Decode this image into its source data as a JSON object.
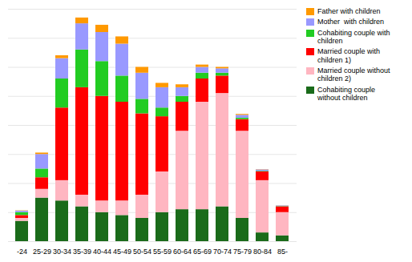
{
  "chart_data": {
    "type": "bar",
    "stacked": true,
    "categories": [
      "-24",
      "25-29",
      "30-34",
      "35-39",
      "40-44",
      "45-49",
      "50-54",
      "55-59",
      "60-64",
      "65-69",
      "70-74",
      "75-79",
      "80-84",
      "85-"
    ],
    "series": [
      {
        "name": "Cohabiting couple\nwithout children",
        "color": "#1a6b1a",
        "values": [
          7,
          15,
          14,
          12,
          10,
          9,
          8,
          10,
          11,
          11,
          12,
          8,
          3,
          2
        ]
      },
      {
        "name": "Married couple without\nchildren 2)",
        "color": "#ffb6c1",
        "values": [
          1,
          3,
          7,
          4,
          4,
          5,
          8,
          14,
          27,
          37,
          39,
          30,
          18,
          8
        ]
      },
      {
        "name": "Married couple with\nchildren 1)",
        "color": "#ff0000",
        "values": [
          1,
          4,
          25,
          37,
          36,
          34,
          28,
          19,
          10,
          8,
          6,
          4,
          3,
          2
        ]
      },
      {
        "name": "Cohabiting couple with\nchildren",
        "color": "#22cc22",
        "values": [
          1,
          3,
          10,
          13,
          12,
          9,
          5,
          3,
          2,
          2,
          1,
          0.5,
          0.2,
          0.1
        ]
      },
      {
        "name": "Mother  with children",
        "color": "#9999ff",
        "values": [
          0.5,
          5,
          7,
          9,
          10,
          11,
          9,
          7,
          3,
          2,
          1.5,
          1,
          0.5,
          0.2
        ]
      },
      {
        "name": "Father with children",
        "color": "#ff9900",
        "values": [
          0.1,
          0.5,
          1,
          2,
          2.5,
          2.5,
          2,
          1.5,
          1,
          0.8,
          0.5,
          0.3,
          0.1,
          0.05
        ]
      }
    ],
    "ylim": [
      0,
      80
    ],
    "yticks": [
      0,
      10,
      20,
      30,
      40,
      50,
      60,
      70,
      80
    ],
    "grid": true,
    "tick_labels": "x",
    "legend": "upper right"
  }
}
